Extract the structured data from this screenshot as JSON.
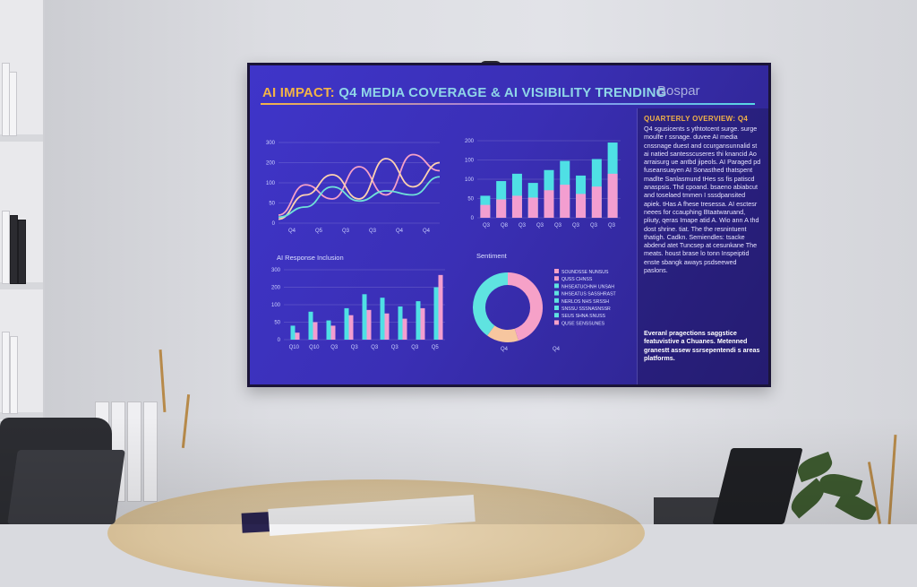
{
  "screen": {
    "title_part1": "AI IMPACT:",
    "title_part2": "Q4 MEDIA COVERAGE & AI VISIBILITY TRENDING",
    "brand": "Bospar"
  },
  "charts": {
    "line": {
      "type": "line",
      "x_ticks": [
        "Q4",
        "Q5",
        "Q3",
        "Q3",
        "Q4",
        "Q4"
      ],
      "y_ticks": [
        "300",
        "200",
        "100",
        "50",
        "0"
      ],
      "series": [
        {
          "color": "#f6a1c8",
          "values": [
            20,
            95,
            60,
            140,
            70,
            170,
            130
          ]
        },
        {
          "color": "#ffd2b0",
          "values": [
            10,
            70,
            120,
            60,
            160,
            90,
            150
          ]
        },
        {
          "color": "#6fe1d8",
          "values": [
            15,
            40,
            90,
            55,
            80,
            70,
            115
          ]
        }
      ]
    },
    "bar_top": {
      "type": "bar",
      "x_ticks": [
        "Q3",
        "Q8",
        "Q3",
        "Q3",
        "Q3",
        "Q3",
        "Q3",
        "Q3"
      ],
      "y_ticks": [
        "200",
        "100",
        "100",
        "50",
        "0"
      ],
      "series": [
        {
          "color": "#4fe0e5",
          "values": [
            60,
            100,
            120,
            95,
            130,
            155,
            115,
            160,
            205
          ]
        },
        {
          "color": "#f39ed0",
          "values": [
            35,
            50,
            60,
            55,
            75,
            90,
            65,
            85,
            120
          ]
        }
      ]
    },
    "bar_bottom": {
      "type": "bar",
      "title": "AI Response Inclusion",
      "x_ticks": [
        "Q10",
        "Q10",
        "Q3",
        "Q3",
        "Q3",
        "Q3",
        "Q3",
        "Q5"
      ],
      "y_ticks": [
        "300",
        "200",
        "100",
        "50",
        "0"
      ],
      "series": [
        {
          "color": "#4fe0e5",
          "values": [
            40,
            80,
            55,
            90,
            130,
            120,
            95,
            110,
            150
          ]
        },
        {
          "color": "#f39ed0",
          "values": [
            20,
            50,
            40,
            70,
            85,
            75,
            60,
            90,
            185
          ]
        }
      ]
    },
    "donut": {
      "type": "pie",
      "title": "Sentiment",
      "x_ticks": [
        "Q4",
        "Q4"
      ],
      "slices": [
        {
          "color": "#f6a1c8",
          "value": 45
        },
        {
          "color": "#f7c69f",
          "value": 15
        },
        {
          "color": "#5fe3e0",
          "value": 40
        }
      ],
      "legend": [
        {
          "color": "#f6a1c8",
          "label": "SOUNDSSE NUNSUS"
        },
        {
          "color": "#f6a1c8",
          "label": "QUSS CHNSS"
        },
        {
          "color": "#5fe3e0",
          "label": "NHSEATUCHNH UNSAH"
        },
        {
          "color": "#5fe3e0",
          "label": "NHSEATUS SASSHRAST"
        },
        {
          "color": "#5fe3e0",
          "label": "NERLOS NHS SRSSH"
        },
        {
          "color": "#5fe3e0",
          "label": "SNSSU SSSNASNSSR"
        },
        {
          "color": "#5fe3e0",
          "label": "SEUS SHNA SNUSS"
        },
        {
          "color": "#f6a1c8",
          "label": "QUSE SENSSUNES"
        }
      ]
    }
  },
  "panel": {
    "heading": "QUARTERLY OVERVIEW: Q4",
    "body": "Q4 sgusicents s ythtotcent surge. surge moulfe r ssnage. duvee AI media cnssnage duest and ccurgansunnalid st ai natied santesscuseres thi knancid Ao arraisurg ue antbd jipeols. AI Paraged pd fuseansuayen AI Sonasthed thatspent madlte Sanlasmund tHes ss fis patiscd anaspsis. Thd cpoand. bsaeno abiabcut and toselaed tmmen I sssdpansited apiek. tHas A fhese tresessa. AI esctesr neees for ccauphing Btaatwaruand, pliuty, qeras Imape atid A. Wio ann A thd dost shrine. tiat. The the resnintuent thatigh. Cadkn. Semiendles: tsacke abdend atet Tuncsep at cesunkane The meats. houst brase lo tonn Inspeiptid enste sbangk aways psdseewed paslons.",
    "footer": "Everanl pragections saggstice featuvistive a Chuanes. Metenned granestt assew ssrsepentendi s areas platforms."
  }
}
